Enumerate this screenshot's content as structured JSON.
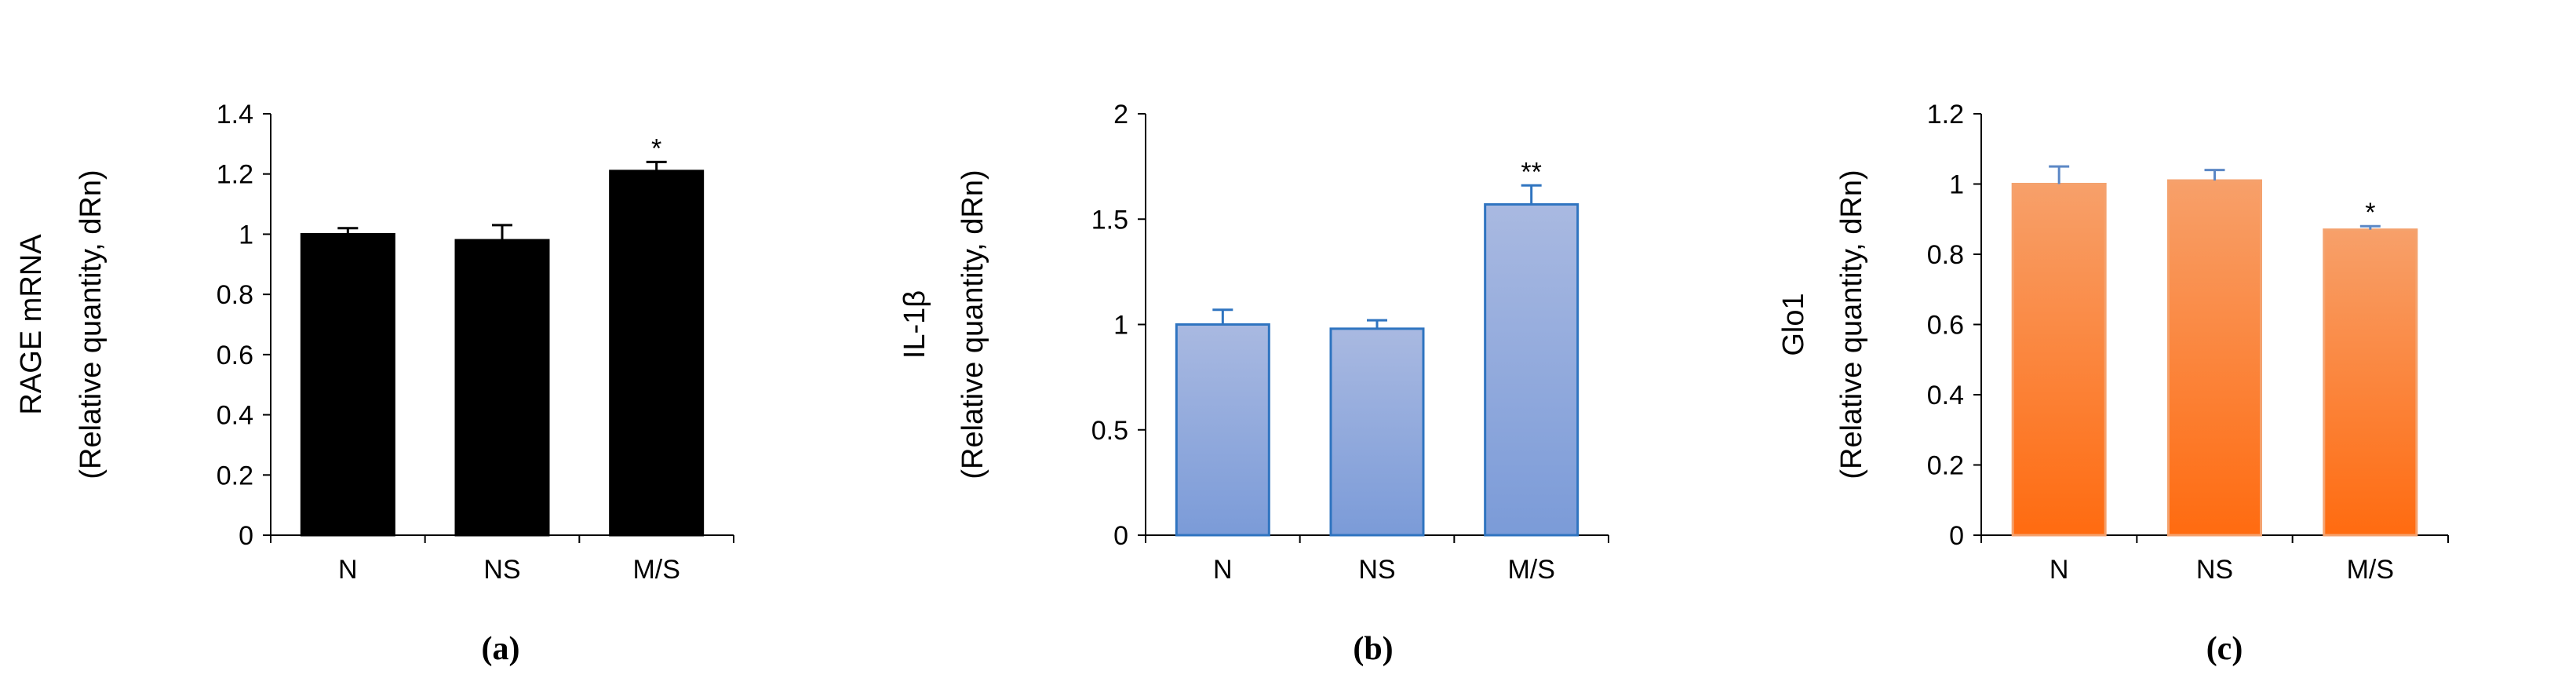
{
  "chart_data": [
    {
      "type": "bar",
      "panel_label": "(a)",
      "categories": [
        "N",
        "NS",
        "M/S"
      ],
      "values": [
        1.0,
        0.98,
        1.21
      ],
      "errors": [
        0.02,
        0.05,
        0.03
      ],
      "significance": [
        "",
        "",
        "*"
      ],
      "ylabel": "RAGE mRNA",
      "ylabel_sub": "(Relative quantity, dRn)",
      "ylim": [
        0,
        1.4
      ],
      "yticks": [
        0,
        0.2,
        0.4,
        0.6,
        0.8,
        1,
        1.2,
        1.4
      ],
      "ytick_labels": [
        "0",
        "0.2",
        "0.4",
        "0.6",
        "0.8",
        "1",
        "1.2",
        "1.4"
      ],
      "bar_color": "#000000",
      "bar_gradient": false,
      "bar_edge_color": "#000000",
      "error_color": "#000000",
      "grid": false
    },
    {
      "type": "bar",
      "panel_label": "(b)",
      "categories": [
        "N",
        "NS",
        "M/S"
      ],
      "values": [
        1.0,
        0.98,
        1.57
      ],
      "errors": [
        0.07,
        0.04,
        0.09
      ],
      "significance": [
        "",
        "",
        "**"
      ],
      "ylabel": "IL-1β",
      "ylabel_sub": "(Relative quantity, dRn)",
      "ylim": [
        0,
        2
      ],
      "yticks": [
        0,
        0.5,
        1,
        1.5,
        2
      ],
      "ytick_labels": [
        "0",
        "0.5",
        "1",
        "1.5",
        "2"
      ],
      "bar_color": "#a9b9e1",
      "bar_color_bottom": "#7b9bd8",
      "bar_gradient": true,
      "bar_edge_color": "#2f74c0",
      "error_color": "#2f74c0",
      "grid": false
    },
    {
      "type": "bar",
      "panel_label": "(c)",
      "categories": [
        "N",
        "NS",
        "M/S"
      ],
      "values": [
        1.0,
        1.01,
        0.87
      ],
      "errors": [
        0.05,
        0.03,
        0.01
      ],
      "significance": [
        "",
        "",
        "*"
      ],
      "ylabel": "Glo1",
      "ylabel_sub": "(Relative quantity, dRn)",
      "ylim": [
        0,
        1.2
      ],
      "yticks": [
        0,
        0.2,
        0.4,
        0.6,
        0.8,
        1,
        1.2
      ],
      "ytick_labels": [
        "0",
        "0.2",
        "0.4",
        "0.6",
        "0.8",
        "1",
        "1.2"
      ],
      "bar_color": "#f7a06a",
      "bar_color_bottom": "#ff6b10",
      "bar_gradient": true,
      "bar_edge_color": "#f4a26e",
      "error_color": "#5b87c5",
      "grid": false
    }
  ]
}
